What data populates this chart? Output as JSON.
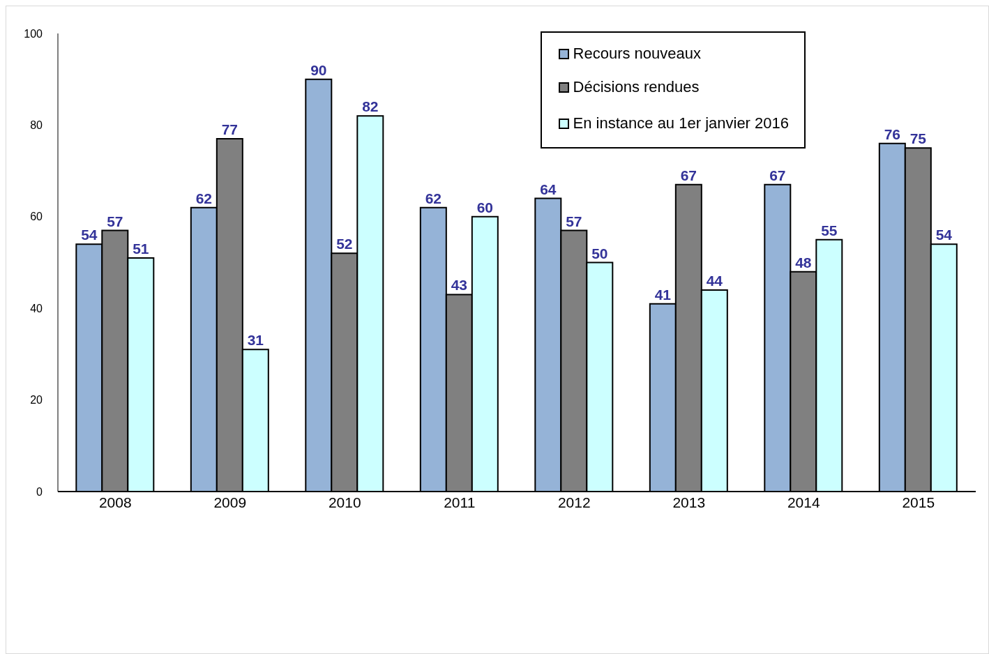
{
  "chart_data": {
    "type": "bar",
    "categories": [
      "2008",
      "2009",
      "2010",
      "2011",
      "2012",
      "2013",
      "2014",
      "2015"
    ],
    "series": [
      {
        "name": "Recours nouveaux",
        "color": "#95b3d7",
        "values": [
          54,
          62,
          90,
          62,
          64,
          41,
          67,
          76
        ]
      },
      {
        "name": "Décisions rendues",
        "color": "#808080",
        "values": [
          57,
          77,
          52,
          43,
          57,
          67,
          48,
          75
        ]
      },
      {
        "name": "En instance au 1er janvier 2016",
        "color": "#ccffff",
        "values": [
          51,
          31,
          82,
          60,
          50,
          44,
          55,
          54
        ]
      }
    ],
    "ylim": [
      0,
      100
    ],
    "yticks": [
      0,
      20,
      40,
      60,
      80,
      100
    ],
    "grid": false,
    "legend": "top right",
    "data_labels": true
  }
}
